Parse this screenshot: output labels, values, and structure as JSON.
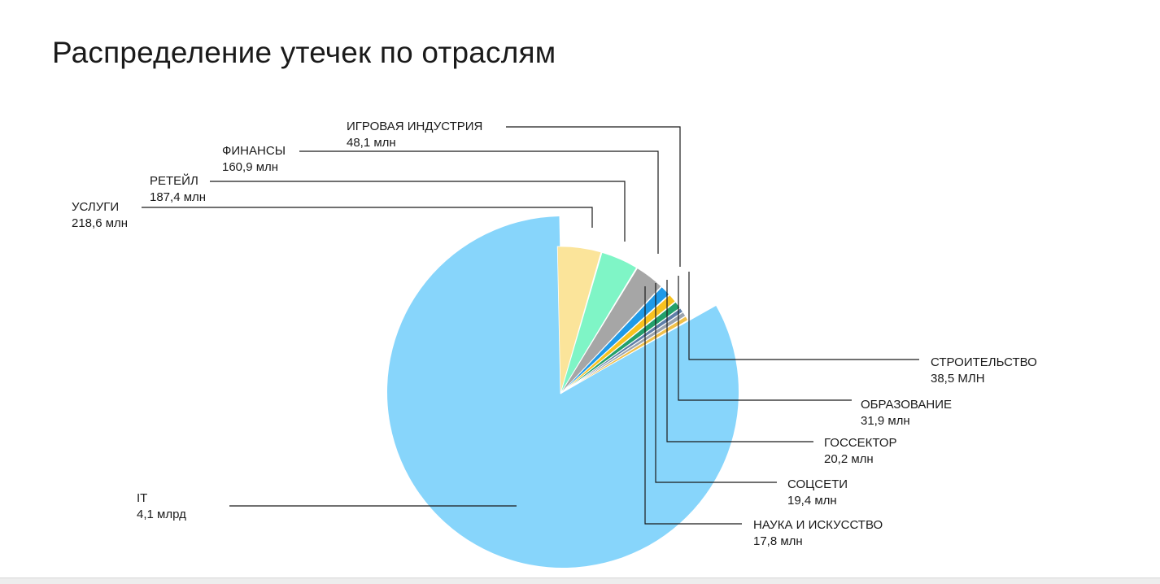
{
  "page": {
    "title": "Распределение утечек по отраслям"
  },
  "chart_data": {
    "type": "pie",
    "title": "Распределение утечек по отраслям",
    "unit_note": "",
    "slices": [
      {
        "label": "IT",
        "value": 4100,
        "display": "4,1 млрд",
        "color": "#87d5fb"
      },
      {
        "label": "УСЛУГИ",
        "value": 218.6,
        "display": "218,6 млн",
        "color": "#fbe49a"
      },
      {
        "label": "РЕТЕЙЛ",
        "value": 187.4,
        "display": "187,4 млн",
        "color": "#7ff5c6"
      },
      {
        "label": "ФИНАНСЫ",
        "value": 160.9,
        "display": "160,9 млн",
        "color": "#a6a6a6"
      },
      {
        "label": "ИГРОВАЯ ИНДУСТРИЯ",
        "value": 48.1,
        "display": "48,1 млн",
        "color": "#1f9ae8"
      },
      {
        "label": "СТРОИТЕЛЬСТВО",
        "value": 38.5,
        "display": "38,5 МЛН",
        "color": "#f7c21f"
      },
      {
        "label": "ОБРАЗОВАНИЕ",
        "value": 31.9,
        "display": "31,9 млн",
        "color": "#23a06b"
      },
      {
        "label": "ГОССЕКТОР",
        "value": 20.2,
        "display": "20,2 млн",
        "color": "#5f7ea8"
      },
      {
        "label": "СОЦСЕТИ",
        "value": 19.4,
        "display": "19,4 млн",
        "color": "#9aa3ad"
      },
      {
        "label": "НАУКА И ИСКУССТВО",
        "value": 17.8,
        "display": "17,8 млн",
        "color": "#f0c04a"
      }
    ]
  }
}
